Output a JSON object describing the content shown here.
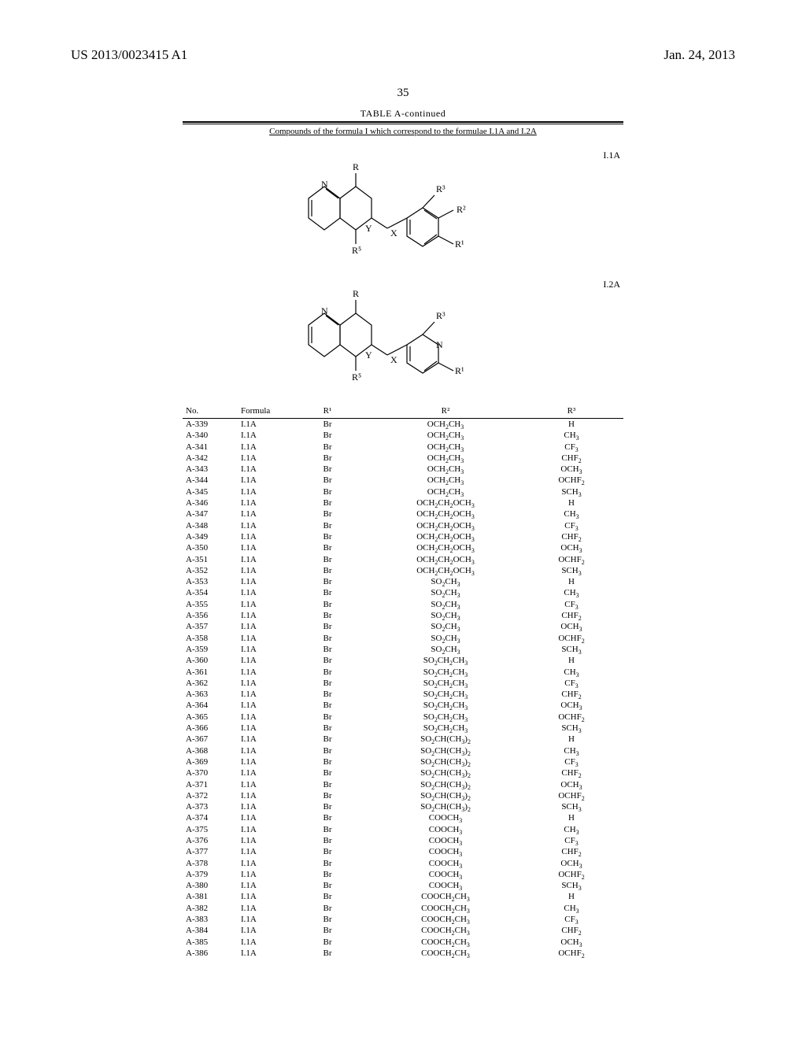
{
  "header": {
    "left": "US 2013/0023415 A1",
    "right": "Jan. 24, 2013"
  },
  "page_number": "35",
  "table": {
    "title": "TABLE A-continued",
    "subtitle": "Compounds of the formula I which correspond to the formulae I.1A and I.2A",
    "struct_labels": {
      "a": "I.1A",
      "b": "I.2A"
    },
    "structure_annot": {
      "R": "R",
      "R1": "R¹",
      "R2": "R²",
      "R3": "R³",
      "R5": "R⁵",
      "N": "N",
      "X": "X",
      "Y": "Y"
    },
    "columns": {
      "no": "No.",
      "formula": "Formula",
      "r1": "R¹",
      "r2": "R²",
      "r3": "R³"
    },
    "rows": [
      {
        "no": "A-339",
        "f": "I.1A",
        "r1": "Br",
        "r2": "OCH₂CH₃",
        "r3": "H"
      },
      {
        "no": "A-340",
        "f": "I.1A",
        "r1": "Br",
        "r2": "OCH₂CH₃",
        "r3": "CH₃"
      },
      {
        "no": "A-341",
        "f": "I.1A",
        "r1": "Br",
        "r2": "OCH₂CH₃",
        "r3": "CF₃"
      },
      {
        "no": "A-342",
        "f": "I.1A",
        "r1": "Br",
        "r2": "OCH₂CH₃",
        "r3": "CHF₂"
      },
      {
        "no": "A-343",
        "f": "I.1A",
        "r1": "Br",
        "r2": "OCH₂CH₃",
        "r3": "OCH₃"
      },
      {
        "no": "A-344",
        "f": "I.1A",
        "r1": "Br",
        "r2": "OCH₂CH₃",
        "r3": "OCHF₂"
      },
      {
        "no": "A-345",
        "f": "I.1A",
        "r1": "Br",
        "r2": "OCH₂CH₃",
        "r3": "SCH₃"
      },
      {
        "no": "A-346",
        "f": "I.1A",
        "r1": "Br",
        "r2": "OCH₂CH₂OCH₃",
        "r3": "H"
      },
      {
        "no": "A-347",
        "f": "I.1A",
        "r1": "Br",
        "r2": "OCH₂CH₂OCH₃",
        "r3": "CH₃"
      },
      {
        "no": "A-348",
        "f": "I.1A",
        "r1": "Br",
        "r2": "OCH₂CH₂OCH₃",
        "r3": "CF₃"
      },
      {
        "no": "A-349",
        "f": "I.1A",
        "r1": "Br",
        "r2": "OCH₂CH₂OCH₃",
        "r3": "CHF₂"
      },
      {
        "no": "A-350",
        "f": "I.1A",
        "r1": "Br",
        "r2": "OCH₂CH₂OCH₃",
        "r3": "OCH₃"
      },
      {
        "no": "A-351",
        "f": "I.1A",
        "r1": "Br",
        "r2": "OCH₂CH₂OCH₃",
        "r3": "OCHF₂"
      },
      {
        "no": "A-352",
        "f": "I.1A",
        "r1": "Br",
        "r2": "OCH₂CH₂OCH₃",
        "r3": "SCH₃"
      },
      {
        "no": "A-353",
        "f": "I.1A",
        "r1": "Br",
        "r2": "SO₂CH₃",
        "r3": "H"
      },
      {
        "no": "A-354",
        "f": "I.1A",
        "r1": "Br",
        "r2": "SO₂CH₃",
        "r3": "CH₃"
      },
      {
        "no": "A-355",
        "f": "I.1A",
        "r1": "Br",
        "r2": "SO₂CH₃",
        "r3": "CF₃"
      },
      {
        "no": "A-356",
        "f": "I.1A",
        "r1": "Br",
        "r2": "SO₂CH₃",
        "r3": "CHF₂"
      },
      {
        "no": "A-357",
        "f": "I.1A",
        "r1": "Br",
        "r2": "SO₂CH₃",
        "r3": "OCH₃"
      },
      {
        "no": "A-358",
        "f": "I.1A",
        "r1": "Br",
        "r2": "SO₂CH₃",
        "r3": "OCHF₂"
      },
      {
        "no": "A-359",
        "f": "I.1A",
        "r1": "Br",
        "r2": "SO₂CH₃",
        "r3": "SCH₃"
      },
      {
        "no": "A-360",
        "f": "I.1A",
        "r1": "Br",
        "r2": "SO₂CH₂CH₃",
        "r3": "H"
      },
      {
        "no": "A-361",
        "f": "I.1A",
        "r1": "Br",
        "r2": "SO₂CH₂CH₃",
        "r3": "CH₃"
      },
      {
        "no": "A-362",
        "f": "I.1A",
        "r1": "Br",
        "r2": "SO₂CH₂CH₃",
        "r3": "CF₃"
      },
      {
        "no": "A-363",
        "f": "I.1A",
        "r1": "Br",
        "r2": "SO₂CH₂CH₃",
        "r3": "CHF₂"
      },
      {
        "no": "A-364",
        "f": "I.1A",
        "r1": "Br",
        "r2": "SO₂CH₂CH₃",
        "r3": "OCH₃"
      },
      {
        "no": "A-365",
        "f": "I.1A",
        "r1": "Br",
        "r2": "SO₂CH₂CH₃",
        "r3": "OCHF₂"
      },
      {
        "no": "A-366",
        "f": "I.1A",
        "r1": "Br",
        "r2": "SO₂CH₂CH₃",
        "r3": "SCH₃"
      },
      {
        "no": "A-367",
        "f": "I.1A",
        "r1": "Br",
        "r2": "SO₂CH(CH₃)₂",
        "r3": "H"
      },
      {
        "no": "A-368",
        "f": "I.1A",
        "r1": "Br",
        "r2": "SO₂CH(CH₃)₂",
        "r3": "CH₃"
      },
      {
        "no": "A-369",
        "f": "I.1A",
        "r1": "Br",
        "r2": "SO₂CH(CH₃)₂",
        "r3": "CF₃"
      },
      {
        "no": "A-370",
        "f": "I.1A",
        "r1": "Br",
        "r2": "SO₂CH(CH₃)₂",
        "r3": "CHF₂"
      },
      {
        "no": "A-371",
        "f": "I.1A",
        "r1": "Br",
        "r2": "SO₂CH(CH₃)₂",
        "r3": "OCH₃"
      },
      {
        "no": "A-372",
        "f": "I.1A",
        "r1": "Br",
        "r2": "SO₂CH(CH₃)₂",
        "r3": "OCHF₂"
      },
      {
        "no": "A-373",
        "f": "I.1A",
        "r1": "Br",
        "r2": "SO₂CH(CH₃)₂",
        "r3": "SCH₃"
      },
      {
        "no": "A-374",
        "f": "I.1A",
        "r1": "Br",
        "r2": "COOCH₃",
        "r3": "H"
      },
      {
        "no": "A-375",
        "f": "I.1A",
        "r1": "Br",
        "r2": "COOCH₃",
        "r3": "CH₃"
      },
      {
        "no": "A-376",
        "f": "I.1A",
        "r1": "Br",
        "r2": "COOCH₃",
        "r3": "CF₃"
      },
      {
        "no": "A-377",
        "f": "I.1A",
        "r1": "Br",
        "r2": "COOCH₃",
        "r3": "CHF₂"
      },
      {
        "no": "A-378",
        "f": "I.1A",
        "r1": "Br",
        "r2": "COOCH₃",
        "r3": "OCH₃"
      },
      {
        "no": "A-379",
        "f": "I.1A",
        "r1": "Br",
        "r2": "COOCH₃",
        "r3": "OCHF₂"
      },
      {
        "no": "A-380",
        "f": "I.1A",
        "r1": "Br",
        "r2": "COOCH₃",
        "r3": "SCH₃"
      },
      {
        "no": "A-381",
        "f": "I.1A",
        "r1": "Br",
        "r2": "COOCH₂CH₃",
        "r3": "H"
      },
      {
        "no": "A-382",
        "f": "I.1A",
        "r1": "Br",
        "r2": "COOCH₂CH₃",
        "r3": "CH₃"
      },
      {
        "no": "A-383",
        "f": "I.1A",
        "r1": "Br",
        "r2": "COOCH₂CH₃",
        "r3": "CF₃"
      },
      {
        "no": "A-384",
        "f": "I.1A",
        "r1": "Br",
        "r2": "COOCH₂CH₃",
        "r3": "CHF₂"
      },
      {
        "no": "A-385",
        "f": "I.1A",
        "r1": "Br",
        "r2": "COOCH₂CH₃",
        "r3": "OCH₃"
      },
      {
        "no": "A-386",
        "f": "I.1A",
        "r1": "Br",
        "r2": "COOCH₂CH₃",
        "r3": "OCHF₂"
      }
    ]
  }
}
